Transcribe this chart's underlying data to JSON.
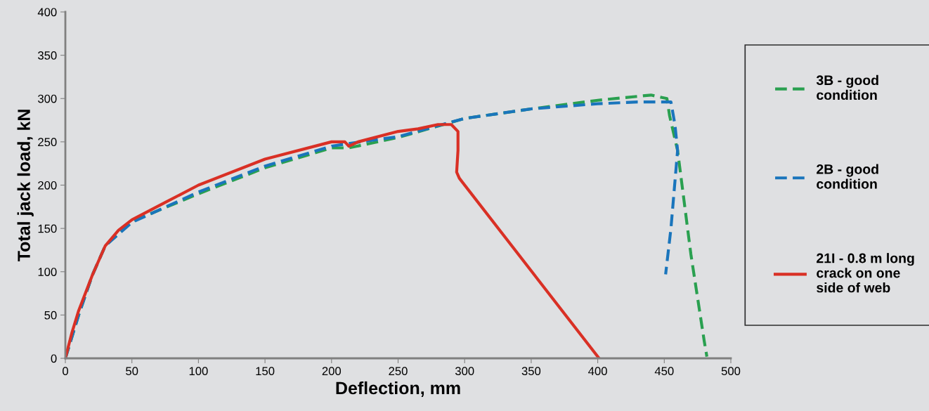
{
  "chart_data": {
    "type": "line",
    "xlabel": "Deflection, mm",
    "ylabel": "Total jack load, kN",
    "xlim": [
      0,
      500
    ],
    "xticks": [
      0,
      50,
      100,
      150,
      200,
      250,
      300,
      350,
      400,
      450,
      500
    ],
    "ylim": [
      0,
      400
    ],
    "yticks": [
      0,
      50,
      100,
      150,
      200,
      250,
      300,
      350,
      400
    ],
    "grid": false,
    "legend": "right",
    "marker": "none",
    "series": [
      {
        "name": "3B - good\ncondition",
        "color": "#2aa050",
        "line_style": "dashed",
        "x": [
          0,
          10,
          20,
          30,
          50,
          100,
          150,
          200,
          213,
          250,
          300,
          350,
          400,
          440,
          452,
          454,
          460,
          470,
          480,
          482
        ],
        "values": [
          0,
          50,
          95,
          130,
          158,
          190,
          220,
          243,
          243,
          255,
          277,
          288,
          298,
          304,
          300,
          280,
          240,
          120,
          20,
          2
        ]
      },
      {
        "name": "2B - good\ncondition",
        "color": "#1a75bc",
        "line_style": "dashed",
        "x": [
          0,
          10,
          20,
          30,
          50,
          100,
          150,
          200,
          213,
          250,
          300,
          350,
          400,
          430,
          455,
          458,
          460,
          455,
          451
        ],
        "values": [
          0,
          50,
          95,
          130,
          157,
          192,
          222,
          245,
          248,
          256,
          277,
          288,
          294,
          296,
          296,
          270,
          240,
          150,
          97
        ]
      },
      {
        "name": "21I - 0.8 m long\ncrack on one\nside of web",
        "color": "#d93025",
        "line_style": "solid",
        "x": [
          0,
          5,
          10,
          20,
          30,
          40,
          50,
          75,
          100,
          150,
          200,
          210,
          213,
          220,
          250,
          265,
          280,
          290,
          295,
          295,
          294,
          296,
          401
        ],
        "values": [
          0,
          30,
          55,
          95,
          130,
          148,
          160,
          180,
          200,
          230,
          250,
          250,
          245,
          250,
          262,
          265,
          270,
          270,
          262,
          240,
          215,
          208,
          0
        ]
      }
    ]
  }
}
